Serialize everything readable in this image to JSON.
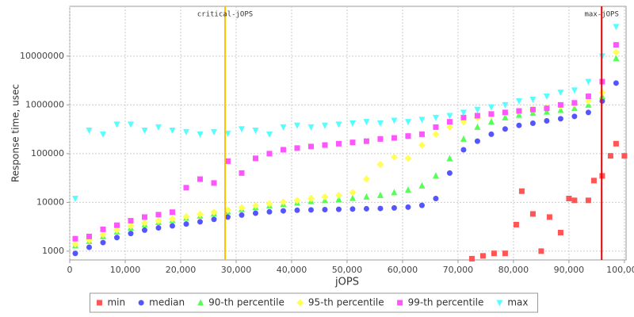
{
  "chart_data": {
    "type": "scatter",
    "xlabel": "jOPS",
    "ylabel": "Response time, usec",
    "xlim": [
      0,
      100300
    ],
    "ylim": [
      660,
      105000000
    ],
    "log_y": true,
    "grid": true,
    "legend": "bottom",
    "xticks": [
      0,
      {
        "value": 10000,
        "label": "10,000"
      },
      {
        "value": 20000,
        "label": "20,000"
      },
      {
        "value": 30000,
        "label": "30,000"
      },
      {
        "value": 40000,
        "label": "40,000"
      },
      {
        "value": 50000,
        "label": "50,000"
      },
      {
        "value": 60000,
        "label": "60,000"
      },
      {
        "value": 70000,
        "label": "70,000"
      },
      {
        "value": 80000,
        "label": "80,000"
      },
      {
        "value": 90000,
        "label": "90,000"
      },
      {
        "value": 100000,
        "label": "100,000"
      }
    ],
    "yticks": [
      1000,
      10000,
      100000,
      1000000,
      10000000
    ],
    "markers": [
      {
        "label": "critical-jOPS",
        "value": 28000,
        "color": "#ffc000"
      },
      {
        "label": "max-jOPS",
        "value": 95900,
        "color": "#ee0000"
      }
    ],
    "x": [
      1000,
      3500,
      6000,
      8500,
      11000,
      13500,
      16000,
      18500,
      21000,
      23500,
      26000,
      28500,
      31000,
      33500,
      36000,
      38500,
      41000,
      43500,
      46000,
      48500,
      51000,
      53500,
      56000,
      58500,
      61000,
      63500,
      66000,
      68500,
      71000,
      73500,
      76000,
      78500,
      81000,
      83500,
      86000,
      88500,
      91000,
      93500,
      96000,
      98500
    ],
    "series": [
      {
        "name": "min",
        "color": "#ff5555",
        "marker": "square",
        "x": [
          72500,
          74500,
          76500,
          78500,
          80500,
          81500,
          83500,
          85000,
          86500,
          88500,
          90000,
          91000,
          93500,
          94500,
          96000,
          97500,
          98500,
          100000
        ],
        "values": [
          700,
          800,
          900,
          900,
          3500,
          17000,
          5800,
          1000,
          5000,
          2400,
          12000,
          11000,
          11000,
          28000,
          35000,
          90000,
          160000,
          90000
        ]
      },
      {
        "name": "median",
        "color": "#5555ff",
        "marker": "circle",
        "values": [
          900,
          1200,
          1500,
          1900,
          2300,
          2700,
          3000,
          3300,
          3600,
          4000,
          4500,
          5000,
          5500,
          6000,
          6400,
          6700,
          6900,
          7000,
          7100,
          7200,
          7300,
          7400,
          7500,
          7700,
          8000,
          8700,
          12000,
          40000,
          120000,
          180000,
          250000,
          320000,
          380000,
          420000,
          470000,
          520000,
          580000,
          700000,
          1200000,
          2800000
        ]
      },
      {
        "name": "90-th percentile",
        "color": "#55ff55",
        "marker": "triangle",
        "values": [
          1300,
          1600,
          2000,
          2500,
          3000,
          3500,
          3900,
          4300,
          4800,
          5300,
          5900,
          6500,
          7200,
          7900,
          8600,
          9200,
          9800,
          10500,
          11000,
          11500,
          12200,
          13000,
          14000,
          16000,
          18000,
          22000,
          35000,
          80000,
          200000,
          350000,
          450000,
          550000,
          620000,
          680000,
          720000,
          780000,
          850000,
          1000000,
          1500000,
          9000000
        ]
      },
      {
        "name": "95-th percentile",
        "color": "#ffff55",
        "marker": "diamond",
        "values": [
          1400,
          1700,
          2200,
          2700,
          3300,
          3800,
          4200,
          4600,
          5100,
          5700,
          6300,
          7000,
          7800,
          8600,
          9400,
          10200,
          11000,
          12000,
          13000,
          14000,
          16000,
          30000,
          60000,
          85000,
          80000,
          150000,
          250000,
          350000,
          450000,
          550000,
          620000,
          690000,
          740000,
          800000,
          870000,
          950000,
          1050000,
          1200000,
          1800000,
          12000000
        ]
      },
      {
        "name": "99-th percentile",
        "color": "#ff55ff",
        "marker": "square",
        "values": [
          1800,
          2000,
          2800,
          3400,
          4200,
          5000,
          5600,
          6300,
          20000,
          30000,
          25000,
          70000,
          40000,
          80000,
          100000,
          120000,
          130000,
          140000,
          150000,
          160000,
          170000,
          180000,
          200000,
          210000,
          230000,
          250000,
          350000,
          450000,
          550000,
          600000,
          650000,
          700000,
          750000,
          800000,
          850000,
          1000000,
          1100000,
          1500000,
          3000000,
          17000000
        ]
      },
      {
        "name": "max",
        "color": "#55ffff",
        "marker": "triangle-down",
        "values": [
          12000,
          300000,
          250000,
          400000,
          400000,
          300000,
          350000,
          300000,
          280000,
          250000,
          280000,
          260000,
          320000,
          300000,
          250000,
          350000,
          380000,
          350000,
          380000,
          400000,
          420000,
          450000,
          420000,
          480000,
          450000,
          500000,
          550000,
          600000,
          700000,
          800000,
          900000,
          1000000,
          1200000,
          1300000,
          1500000,
          1800000,
          2000000,
          3000000,
          10000000,
          40000000
        ]
      }
    ]
  }
}
